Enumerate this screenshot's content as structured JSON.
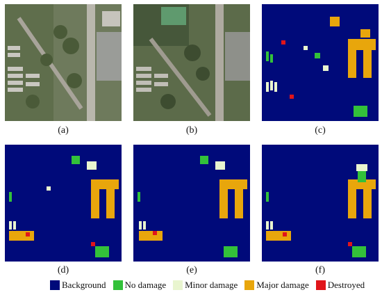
{
  "captions": {
    "a": "(a)",
    "b": "(b)",
    "c": "(c)",
    "d": "(d)",
    "e": "(e)",
    "f": "(f)"
  },
  "legend": [
    {
      "label": "Background",
      "color": "#000a7a"
    },
    {
      "label": "No damage",
      "color": "#33c13a"
    },
    {
      "label": "Minor damage",
      "color": "#e9f5cf"
    },
    {
      "label": "Major damage",
      "color": "#e8a60c"
    },
    {
      "label": "Destroyed",
      "color": "#e0151a"
    }
  ],
  "colors": {
    "background": "#000a7a",
    "no_damage": "#33c13a",
    "minor": "#e9f5cf",
    "major": "#e8a60c",
    "destroyed": "#e0151a"
  },
  "icons": [
    "aerial-photo-pre",
    "aerial-photo-post",
    "damage-map"
  ]
}
